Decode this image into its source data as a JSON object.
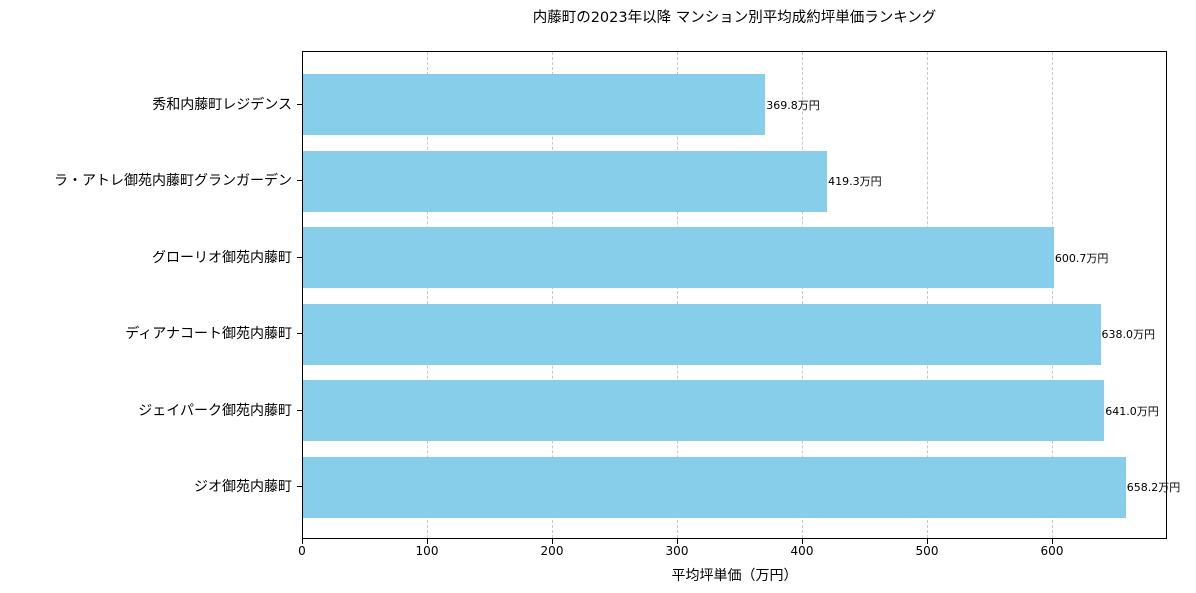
{
  "chart_data": {
    "type": "bar",
    "orientation": "horizontal",
    "title": "内藤町の2023年以降 マンション別平均成約坪単価ランキング",
    "xlabel": "平均坪単価（万円）",
    "ylabel": "",
    "xlim": [
      0,
      692
    ],
    "x_ticks": [
      0,
      100,
      200,
      300,
      400,
      500,
      600
    ],
    "grid": {
      "x": true,
      "y": false,
      "style": "dashed"
    },
    "bar_color": "#87ceeb",
    "categories": [
      "秀和内藤町レジデンス",
      "ラ・アトレ御苑内藤町グランガーデン",
      "グローリオ御苑内藤町",
      "ディアナコート御苑内藤町",
      "ジェイパーク御苑内藤町",
      "ジオ御苑内藤町"
    ],
    "values": [
      369.8,
      419.3,
      600.7,
      638.0,
      641.0,
      658.2
    ],
    "value_labels": [
      "369.8万円",
      "419.3万円",
      "600.7万円",
      "638.0万円",
      "641.0万円",
      "658.2万円"
    ]
  }
}
